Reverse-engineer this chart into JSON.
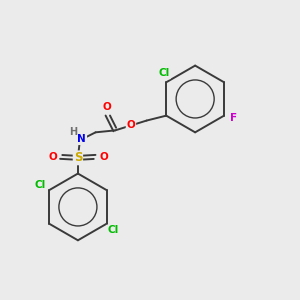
{
  "bg_color": "#ebebeb",
  "bond_color": "#3a3a3a",
  "atom_colors": {
    "Cl": "#00bb00",
    "F": "#cc00cc",
    "O": "#ff0000",
    "N": "#0000ee",
    "S": "#ccaa00",
    "H": "#707070",
    "C": "#3a3a3a"
  },
  "figsize": [
    3.0,
    3.0
  ],
  "dpi": 100
}
